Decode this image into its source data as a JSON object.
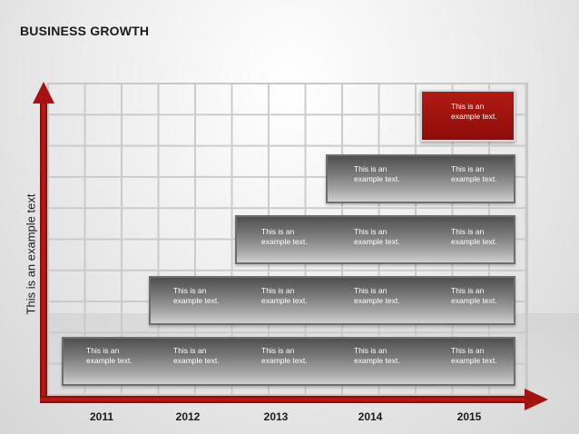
{
  "title": "BUSINESS GROWTH",
  "y_axis_label": "This is an example text",
  "years": [
    "2011",
    "2012",
    "2013",
    "2014",
    "2015"
  ],
  "cell_text": "This is an example text.",
  "colors": {
    "accent": "#a5120f",
    "tier": "#7a7a7a",
    "grid": "#c8c8c8"
  }
}
